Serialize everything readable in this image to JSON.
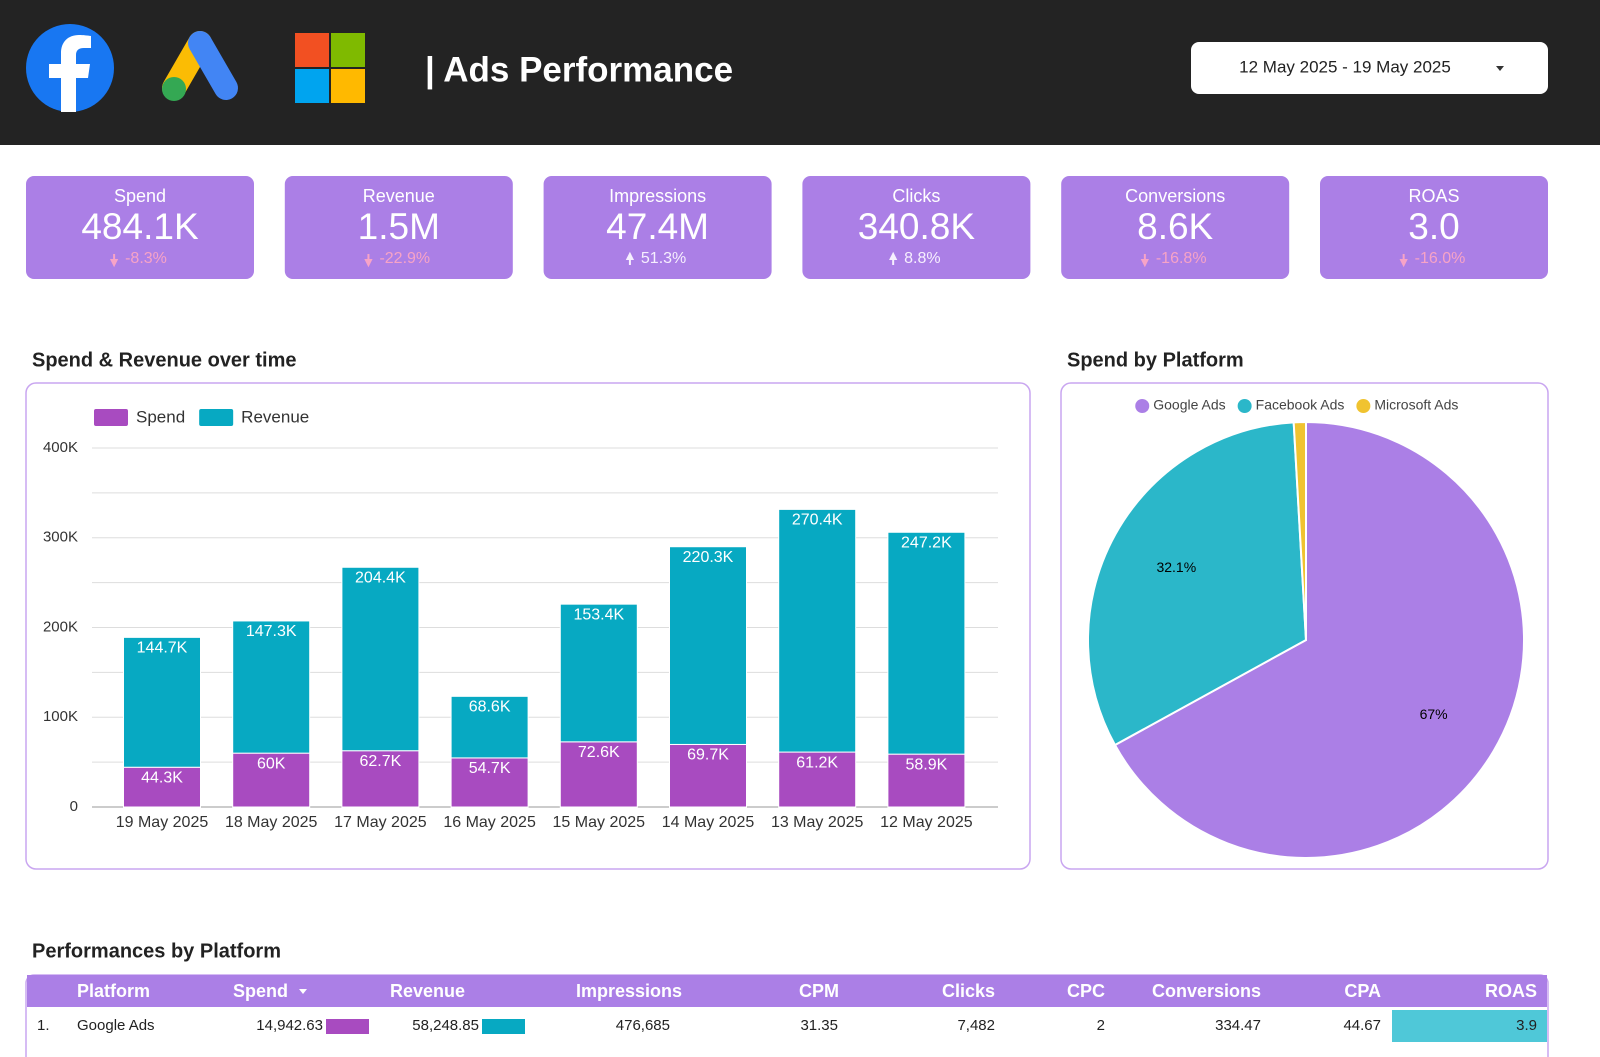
{
  "header": {
    "title": "| Ads Performance",
    "date_range": "12 May 2025 - 19 May 2025"
  },
  "kpis": [
    {
      "label": "Spend",
      "value": "484.1K",
      "change": "-8.3%"
    },
    {
      "label": "Revenue",
      "value": "1.5M",
      "change": "-22.9%"
    },
    {
      "label": "Impressions",
      "value": "47.4M",
      "change": "51.3%"
    },
    {
      "label": "Clicks",
      "value": "340.8K",
      "change": "8.8%"
    },
    {
      "label": "Conversions",
      "value": "8.6K",
      "change": "-16.8%"
    },
    {
      "label": "ROAS",
      "value": "3.0",
      "change": "-16.0%"
    }
  ],
  "chart_data": [
    {
      "type": "bar",
      "stacked": true,
      "title": "Spend & Revenue over time",
      "categories": [
        "19 May 2025",
        "18 May 2025",
        "17 May 2025",
        "16 May 2025",
        "15 May 2025",
        "14 May 2025",
        "13 May 2025",
        "12 May 2025"
      ],
      "series": [
        {
          "name": "Spend",
          "color": "#a84bc0",
          "values": [
            44300,
            60000,
            62700,
            54700,
            72600,
            69700,
            61200,
            58900
          ],
          "value_labels": [
            "44.3K",
            "60K",
            "62.7K",
            "54.7K",
            "72.6K",
            "69.7K",
            "61.2K",
            "58.9K"
          ]
        },
        {
          "name": "Revenue",
          "color": "#07a9c2",
          "values": [
            144700,
            147300,
            204400,
            68600,
            153400,
            220300,
            270400,
            247200
          ],
          "value_labels": [
            "144.7K",
            "147.3K",
            "204.4K",
            "68.6K",
            "153.4K",
            "220.3K",
            "270.4K",
            "247.2K"
          ]
        }
      ],
      "ylim": [
        0,
        400000
      ],
      "yticks": [
        0,
        {
          "value": 100000,
          "label": "100K"
        },
        {
          "value": 200000,
          "label": "200K"
        },
        {
          "value": 300000,
          "label": "300K"
        },
        {
          "value": 400000,
          "label": "400K"
        }
      ],
      "minor_grid": [
        50000,
        150000,
        250000,
        350000
      ],
      "grid": true,
      "legend": "top-left"
    },
    {
      "type": "pie",
      "title": "Spend by Platform",
      "categories": [
        "Google Ads",
        "Facebook Ads",
        "Microsoft Ads"
      ],
      "values": [
        67,
        32.1,
        0.9
      ],
      "value_labels": [
        "67%",
        "32.1%",
        null
      ],
      "colors": [
        "#ab7fe6",
        "#2bb7c9",
        "#f0c330"
      ],
      "legend": "top"
    }
  ],
  "table": {
    "title": "Performances by Platform",
    "columns": [
      "Platform",
      "Spend",
      "Revenue",
      "Impressions",
      "CPM",
      "Clicks",
      "CPC",
      "Conversions",
      "CPA",
      "ROAS"
    ],
    "rows": [
      {
        "rank": "1.",
        "cells": [
          "Google Ads",
          "14,942.63",
          "58,248.85",
          "476,685",
          "31.35",
          "7,482",
          "2",
          "334.47",
          "44.67",
          "3.9"
        ]
      }
    ]
  }
}
